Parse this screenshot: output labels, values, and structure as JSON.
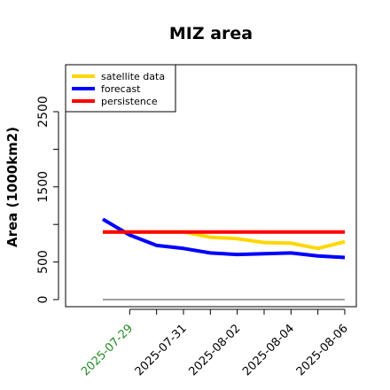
{
  "chart_data": {
    "type": "line",
    "title": "MIZ area",
    "xlabel": "",
    "ylabel": "Area (1000km2)",
    "x": [
      "2025-07-28",
      "2025-07-29",
      "2025-07-30",
      "2025-07-31",
      "2025-08-01",
      "2025-08-02",
      "2025-08-03",
      "2025-08-04",
      "2025-08-05",
      "2025-08-06"
    ],
    "x_tick_labels": [
      "2025-07-29",
      "2025-07-31",
      "2025-08-02",
      "2025-08-04",
      "2025-08-06"
    ],
    "x_tick_colors": [
      "#228B22",
      "#000000",
      "#000000",
      "#000000",
      "#000000"
    ],
    "ylim": [
      0,
      3000
    ],
    "y_ticks": [
      0,
      500,
      1500,
      2500
    ],
    "series": [
      {
        "name": "satellite data",
        "color": "#FFD700",
        "values": [
          900,
          900,
          900,
          900,
          830,
          810,
          760,
          750,
          680,
          770
        ]
      },
      {
        "name": "forecast",
        "color": "#0000FF",
        "values": [
          1070,
          860,
          720,
          680,
          620,
          600,
          610,
          620,
          580,
          560
        ]
      },
      {
        "name": "persistence",
        "color": "#FF0000",
        "values": [
          900,
          900,
          900,
          900,
          900,
          900,
          900,
          900,
          900,
          900
        ]
      }
    ],
    "baseline": {
      "value": 0,
      "color": "#808080"
    },
    "legend_position": "top-left",
    "grid": false
  }
}
